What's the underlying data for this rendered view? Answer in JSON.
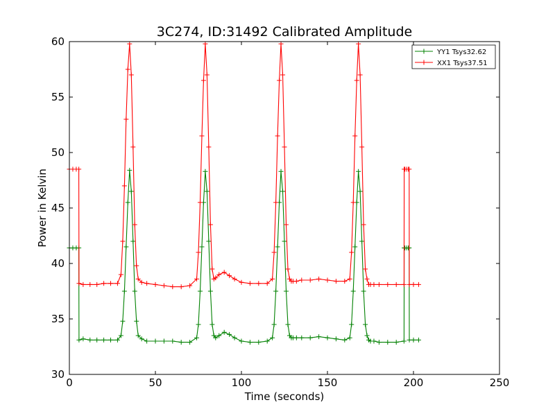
{
  "chart_data": {
    "type": "line",
    "title": "3C274, ID:31492 Calibrated Amplitude",
    "xlabel": "Time (seconds)",
    "ylabel": "Power in Kelvin",
    "xlim": [
      0,
      250
    ],
    "ylim": [
      30,
      60
    ],
    "xticks": [
      "0",
      "50",
      "100",
      "150",
      "200",
      "250"
    ],
    "yticks": [
      "30",
      "35",
      "40",
      "45",
      "50",
      "55",
      "60"
    ],
    "grid": false,
    "legend_position": "top-right",
    "marker": "+",
    "series": [
      {
        "name": "YY1 Tsys32.62",
        "color": "#008000",
        "x": [
          0,
          2,
          4,
          5.5,
          5.6,
          8,
          12,
          16,
          20,
          24,
          28,
          30,
          31,
          32,
          33,
          34,
          35,
          36,
          37,
          38,
          39,
          40,
          42,
          45,
          50,
          55,
          60,
          65,
          70,
          74,
          75,
          76,
          77,
          78,
          79,
          80,
          81,
          82,
          83,
          84,
          85,
          87,
          90,
          93,
          96,
          100,
          105,
          110,
          115,
          118,
          119,
          120,
          121,
          122,
          123,
          124,
          125,
          126,
          127,
          128,
          129,
          130,
          132,
          135,
          140,
          145,
          150,
          155,
          160,
          163,
          164,
          165,
          166,
          167,
          168,
          169,
          170,
          171,
          172,
          173,
          174,
          175,
          177,
          180,
          185,
          190,
          194.5,
          194.6,
          195,
          196,
          197,
          197.5,
          197.6,
          200,
          203
        ],
        "y": [
          41.4,
          41.4,
          41.4,
          41.4,
          33.1,
          33.2,
          33.1,
          33.1,
          33.1,
          33.1,
          33.1,
          33.5,
          34.8,
          37.5,
          41.5,
          45.5,
          48.4,
          46.5,
          42.0,
          37.5,
          34.8,
          33.5,
          33.2,
          33.0,
          33.0,
          33.0,
          33.0,
          32.9,
          32.9,
          33.3,
          34.5,
          37.5,
          41.5,
          45.5,
          48.3,
          46.5,
          42.0,
          37.5,
          34.5,
          33.5,
          33.3,
          33.5,
          33.8,
          33.6,
          33.3,
          33.0,
          32.9,
          32.9,
          33.0,
          33.3,
          34.5,
          37.5,
          41.5,
          45.5,
          48.3,
          46.5,
          42.0,
          37.5,
          34.5,
          33.5,
          33.3,
          33.3,
          33.3,
          33.3,
          33.3,
          33.4,
          33.3,
          33.2,
          33.1,
          33.3,
          34.5,
          37.5,
          41.5,
          45.5,
          48.3,
          46.5,
          42.0,
          37.5,
          34.5,
          33.5,
          33.1,
          33.0,
          33.0,
          32.9,
          32.9,
          32.9,
          33.0,
          41.4,
          41.4,
          41.4,
          41.4,
          41.4,
          33.1,
          33.1,
          33.1
        ]
      },
      {
        "name": "XX1 Tsys37.51",
        "color": "#ff0000",
        "x": [
          0,
          2,
          4,
          5.5,
          5.6,
          8,
          12,
          16,
          20,
          24,
          28,
          30,
          31,
          32,
          33,
          34,
          35,
          36,
          37,
          38,
          39,
          40,
          42,
          45,
          50,
          55,
          60,
          65,
          70,
          74,
          75,
          76,
          77,
          78,
          79,
          80,
          81,
          82,
          83,
          84,
          85,
          87,
          90,
          93,
          96,
          100,
          105,
          110,
          115,
          118,
          119,
          120,
          121,
          122,
          123,
          124,
          125,
          126,
          127,
          128,
          129,
          130,
          132,
          135,
          140,
          145,
          150,
          155,
          160,
          163,
          164,
          165,
          166,
          167,
          168,
          169,
          170,
          171,
          172,
          173,
          174,
          175,
          177,
          180,
          185,
          190,
          194.5,
          194.6,
          195,
          196,
          197,
          197.5,
          197.6,
          200,
          203
        ],
        "y": [
          48.5,
          48.5,
          48.5,
          48.5,
          38.2,
          38.1,
          38.1,
          38.1,
          38.2,
          38.2,
          38.2,
          39.0,
          42.0,
          47.0,
          53.0,
          57.5,
          59.8,
          57.0,
          50.5,
          43.5,
          39.8,
          38.6,
          38.3,
          38.2,
          38.1,
          38.0,
          37.9,
          37.9,
          38.0,
          38.6,
          41.0,
          45.5,
          51.5,
          56.5,
          59.8,
          57.0,
          50.5,
          43.5,
          39.5,
          38.6,
          38.7,
          39.0,
          39.2,
          38.9,
          38.6,
          38.3,
          38.2,
          38.2,
          38.2,
          38.6,
          41.0,
          45.5,
          51.5,
          56.5,
          59.8,
          57.0,
          50.5,
          43.5,
          39.5,
          38.6,
          38.4,
          38.4,
          38.4,
          38.5,
          38.5,
          38.6,
          38.5,
          38.4,
          38.4,
          38.6,
          41.0,
          45.5,
          51.5,
          56.5,
          59.8,
          57.0,
          50.5,
          43.5,
          39.5,
          38.6,
          38.1,
          38.1,
          38.1,
          38.1,
          38.1,
          38.1,
          38.1,
          48.5,
          48.5,
          48.5,
          48.5,
          48.5,
          38.1,
          38.1,
          38.1
        ]
      }
    ]
  }
}
